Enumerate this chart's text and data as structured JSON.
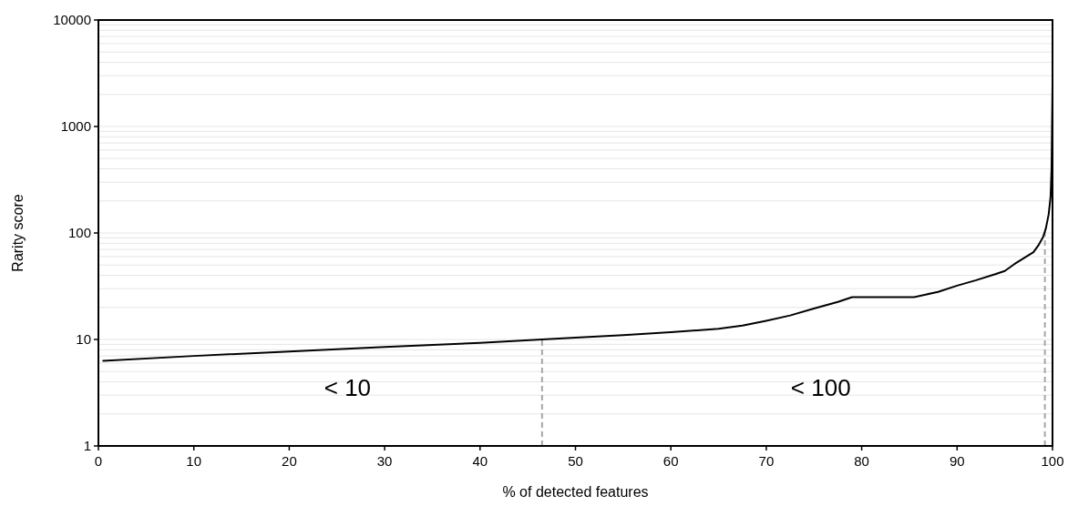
{
  "chart_data": {
    "type": "line",
    "xlabel": "% of detected features",
    "ylabel": "Rarity score",
    "log": "y",
    "grid": "y",
    "xlim": [
      0,
      100
    ],
    "ylim": [
      1,
      10000
    ],
    "xticks": [
      0,
      10,
      20,
      30,
      40,
      50,
      60,
      70,
      80,
      90,
      100
    ],
    "yticks": [
      1,
      10,
      100,
      1000,
      10000
    ],
    "series": [
      {
        "color": "#000000",
        "x": [
          0.5,
          10,
          20,
          30,
          40,
          46.5,
          50,
          55,
          60,
          65,
          67.5,
          70,
          72.5,
          75,
          77.5,
          79,
          82,
          85.5,
          88,
          90,
          92,
          94,
          95,
          96,
          97,
          98,
          98.5,
          99,
          99.3,
          99.6,
          99.8,
          99.9,
          100
        ],
        "values": [
          6.3,
          7,
          7.7,
          8.5,
          9.3,
          10,
          10.4,
          11,
          11.7,
          12.6,
          13.5,
          15,
          16.8,
          19.5,
          22.5,
          25,
          25,
          25,
          28,
          32,
          36,
          41,
          44,
          51,
          58,
          66,
          76,
          91,
          110,
          150,
          220,
          400,
          2500
        ]
      }
    ],
    "ref_lines": [
      {
        "axis": "x",
        "value": 46.5,
        "color": "#a6a6a6",
        "line_style": "dashed"
      },
      {
        "axis": "x",
        "value": 99.2,
        "color": "#a6a6a6",
        "line_style": "dashed"
      }
    ],
    "annotations": [
      "< 10",
      "< 100"
    ]
  }
}
